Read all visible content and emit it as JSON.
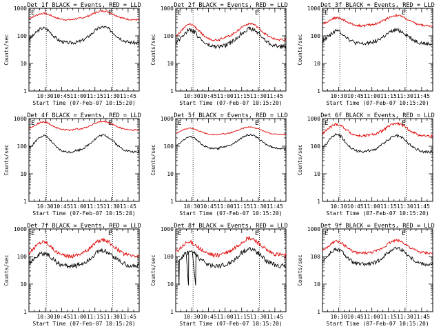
{
  "chart_data": [
    {
      "type": "line",
      "title": "Det 1f BLACK = Events, RED = LLD",
      "xlabel": "Start Time (07-Feb-07 10:15:20)",
      "ylabel": "Counts/sec",
      "yscale": "log",
      "ylim": [
        1,
        1000
      ],
      "xticks": [
        "10:30",
        "10:45",
        "11:00",
        "11:15",
        "11:30",
        "11:45"
      ],
      "yticks": [
        "1",
        "10",
        "100",
        "1000"
      ],
      "markers": [
        "E",
        "E"
      ],
      "peaks": [
        {
          "x": "10:28",
          "black": 190,
          "red": 650
        },
        {
          "x": "11:22",
          "black": 210,
          "red": 800
        }
      ],
      "series": [
        {
          "name": "BLACK",
          "color": "#000000",
          "base": 55,
          "peak1": 190,
          "peak2": 210,
          "dip": 55,
          "noise": 0.06
        },
        {
          "name": "RED",
          "color": "#e00000",
          "base": 380,
          "peak1": 650,
          "peak2": 800,
          "dip": 400,
          "noise": 0.03
        }
      ]
    },
    {
      "type": "line",
      "title": "Det 2f BLACK = Events, RED = LLD",
      "xlabel": "Start Time (07-Feb-07 10:15:20)",
      "ylabel": "Counts/sec",
      "yscale": "log",
      "ylim": [
        1,
        1000
      ],
      "xticks": [
        "10:30",
        "10:45",
        "11:00",
        "11:15",
        "11:30",
        "11:45"
      ],
      "yticks": [
        "1",
        "10",
        "100",
        "1000"
      ],
      "markers": [
        "E",
        "E"
      ],
      "series": [
        {
          "name": "BLACK",
          "color": "#000000",
          "base": 40,
          "peak1": 160,
          "peak2": 180,
          "dip": 40,
          "noise": 0.08
        },
        {
          "name": "RED",
          "color": "#e00000",
          "base": 70,
          "peak1": 260,
          "peak2": 280,
          "dip": 80,
          "noise": 0.04
        }
      ]
    },
    {
      "type": "line",
      "title": "Det 3f BLACK = Events, RED = LLD",
      "xlabel": "Start Time (07-Feb-07 10:15:20)",
      "ylabel": "Counts/sec",
      "yscale": "log",
      "ylim": [
        1,
        1000
      ],
      "xticks": [
        "10:30",
        "10:45",
        "11:00",
        "11:15",
        "11:30",
        "11:45"
      ],
      "yticks": [
        "1",
        "10",
        "100",
        "1000"
      ],
      "markers": [
        "E",
        "E"
      ],
      "series": [
        {
          "name": "BLACK",
          "color": "#000000",
          "base": 50,
          "peak1": 150,
          "peak2": 160,
          "dip": 55,
          "noise": 0.07
        },
        {
          "name": "RED",
          "color": "#e00000",
          "base": 230,
          "peak1": 450,
          "peak2": 550,
          "dip": 240,
          "noise": 0.04
        }
      ]
    },
    {
      "type": "line",
      "title": "Det 4f BLACK = Events, RED = LLD",
      "xlabel": "Start Time (07-Feb-07 10:15:20)",
      "ylabel": "Counts/sec",
      "yscale": "log",
      "ylim": [
        1,
        1000
      ],
      "xticks": [
        "10:30",
        "10:45",
        "11:00",
        "11:15",
        "11:30",
        "11:45"
      ],
      "yticks": [
        "1",
        "10",
        "100",
        "1000"
      ],
      "markers": [
        "E",
        "E"
      ],
      "series": [
        {
          "name": "BLACK",
          "color": "#000000",
          "base": 60,
          "peak1": 240,
          "peak2": 250,
          "dip": 65,
          "noise": 0.04
        },
        {
          "name": "RED",
          "color": "#e00000",
          "base": 380,
          "peak1": 750,
          "peak2": 780,
          "dip": 400,
          "noise": 0.03
        }
      ]
    },
    {
      "type": "line",
      "title": "Det 5f BLACK = Events, RED = LLD",
      "xlabel": "Start Time (07-Feb-07 10:15:20)",
      "ylabel": "Counts/sec",
      "yscale": "log",
      "ylim": [
        1,
        1000
      ],
      "xticks": [
        "10:30",
        "10:45",
        "11:00",
        "11:15",
        "11:30",
        "11:45"
      ],
      "yticks": [
        "1",
        "10",
        "100",
        "1000"
      ],
      "markers": [
        "E",
        "E"
      ],
      "series": [
        {
          "name": "BLACK",
          "color": "#000000",
          "base": 80,
          "peak1": 220,
          "peak2": 260,
          "dip": 90,
          "noise": 0.03
        },
        {
          "name": "RED",
          "color": "#e00000",
          "base": 260,
          "peak1": 450,
          "peak2": 500,
          "dip": 270,
          "noise": 0.02
        }
      ]
    },
    {
      "type": "line",
      "title": "Det 6f BLACK = Events, RED = LLD",
      "xlabel": "Start Time (07-Feb-07 10:15:20)",
      "ylabel": "Counts/sec",
      "yscale": "log",
      "ylim": [
        1,
        1000
      ],
      "xticks": [
        "10:30",
        "10:45",
        "11:00",
        "11:15",
        "11:30",
        "11:45"
      ],
      "yticks": [
        "1",
        "10",
        "100",
        "1000"
      ],
      "markers": [
        "E",
        "E"
      ],
      "series": [
        {
          "name": "BLACK",
          "color": "#000000",
          "base": 60,
          "peak1": 260,
          "peak2": 240,
          "dip": 65,
          "noise": 0.05
        },
        {
          "name": "RED",
          "color": "#e00000",
          "base": 230,
          "peak1": 620,
          "peak2": 650,
          "dip": 240,
          "noise": 0.05
        }
      ]
    },
    {
      "type": "line",
      "title": "Det 7f BLACK = Events, RED = LLD",
      "xlabel": "Start Time (07-Feb-07 10:15:20)",
      "ylabel": "Counts/sec",
      "yscale": "log",
      "ylim": [
        1,
        1000
      ],
      "xticks": [
        "10:30",
        "10:45",
        "11:00",
        "11:15",
        "11:30",
        "11:45"
      ],
      "yticks": [
        "1",
        "10",
        "100",
        "1000"
      ],
      "markers": [
        "E",
        "E"
      ],
      "series": [
        {
          "name": "BLACK",
          "color": "#000000",
          "base": 45,
          "peak1": 130,
          "peak2": 160,
          "dip": 45,
          "noise": 0.09
        },
        {
          "name": "RED",
          "color": "#e00000",
          "base": 100,
          "peak1": 350,
          "peak2": 400,
          "dip": 110,
          "noise": 0.07
        }
      ]
    },
    {
      "type": "line",
      "title": "Det 8f BLACK = Events, RED = LLD",
      "xlabel": "Start Time (07-Feb-07 10:15:20)",
      "ylabel": "Counts/sec",
      "yscale": "log",
      "ylim": [
        1,
        1000
      ],
      "xticks": [
        "10:30",
        "10:45",
        "11:00",
        "11:15",
        "11:30",
        "11:45"
      ],
      "yticks": [
        "1",
        "10",
        "100",
        "1000"
      ],
      "markers": [
        "E",
        "E"
      ],
      "series": [
        {
          "name": "BLACK",
          "color": "#000000",
          "base": 45,
          "peak1": 150,
          "peak2": 190,
          "dip": 45,
          "noise": 0.09,
          "drops": true
        },
        {
          "name": "RED",
          "color": "#e00000",
          "base": 110,
          "peak1": 330,
          "peak2": 450,
          "dip": 120,
          "noise": 0.08
        }
      ]
    },
    {
      "type": "line",
      "title": "Det 9f BLACK = Events, RED = LLD",
      "xlabel": "Start Time (07-Feb-07 10:15:20)",
      "ylabel": "Counts/sec",
      "yscale": "log",
      "ylim": [
        1,
        1000
      ],
      "xticks": [
        "10:30",
        "10:45",
        "11:00",
        "11:15",
        "11:30",
        "11:45"
      ],
      "yticks": [
        "1",
        "10",
        "100",
        "1000"
      ],
      "markers": [
        "E",
        "E"
      ],
      "series": [
        {
          "name": "BLACK",
          "color": "#000000",
          "base": 50,
          "peak1": 180,
          "peak2": 200,
          "dip": 50,
          "noise": 0.07
        },
        {
          "name": "RED",
          "color": "#e00000",
          "base": 130,
          "peak1": 350,
          "peak2": 380,
          "dip": 130,
          "noise": 0.05
        }
      ]
    }
  ]
}
